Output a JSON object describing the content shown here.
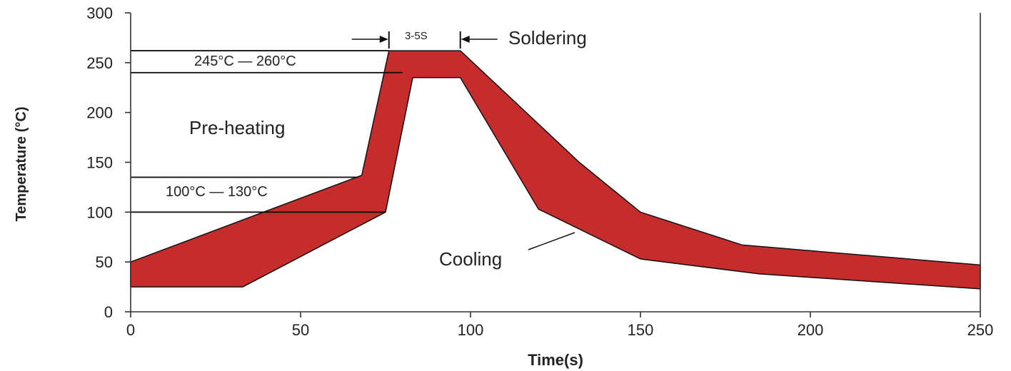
{
  "chart_data": {
    "type": "area",
    "title": "",
    "xlabel": "Time(s)",
    "ylabel": "Temperature (°C)",
    "xlim": [
      0,
      250
    ],
    "ylim": [
      0,
      300
    ],
    "x_ticks": [
      0,
      50,
      100,
      150,
      200,
      250
    ],
    "y_ticks": [
      0,
      50,
      100,
      150,
      200,
      250,
      300
    ],
    "grid": false,
    "legend": "none",
    "band_color": "#c62c2c",
    "series": [
      {
        "role": "upper",
        "points": [
          [
            0,
            50
          ],
          [
            68,
            137
          ],
          [
            76,
            262
          ],
          [
            97,
            262
          ],
          [
            132,
            150
          ],
          [
            150,
            100
          ],
          [
            180,
            67
          ],
          [
            250,
            47
          ]
        ]
      },
      {
        "role": "lower",
        "points": [
          [
            0,
            25
          ],
          [
            33,
            25
          ],
          [
            75,
            100
          ],
          [
            83,
            235
          ],
          [
            97,
            235
          ],
          [
            120,
            103
          ],
          [
            150,
            53
          ],
          [
            185,
            38
          ],
          [
            250,
            23
          ]
        ]
      }
    ],
    "annotations": {
      "preheat_range": "100°C — 130°C",
      "solder_range": "245°C — 260°C",
      "dwell": "3-5S",
      "soldering": "Soldering",
      "preheating": "Pre-heating",
      "cooling": "Cooling"
    }
  }
}
